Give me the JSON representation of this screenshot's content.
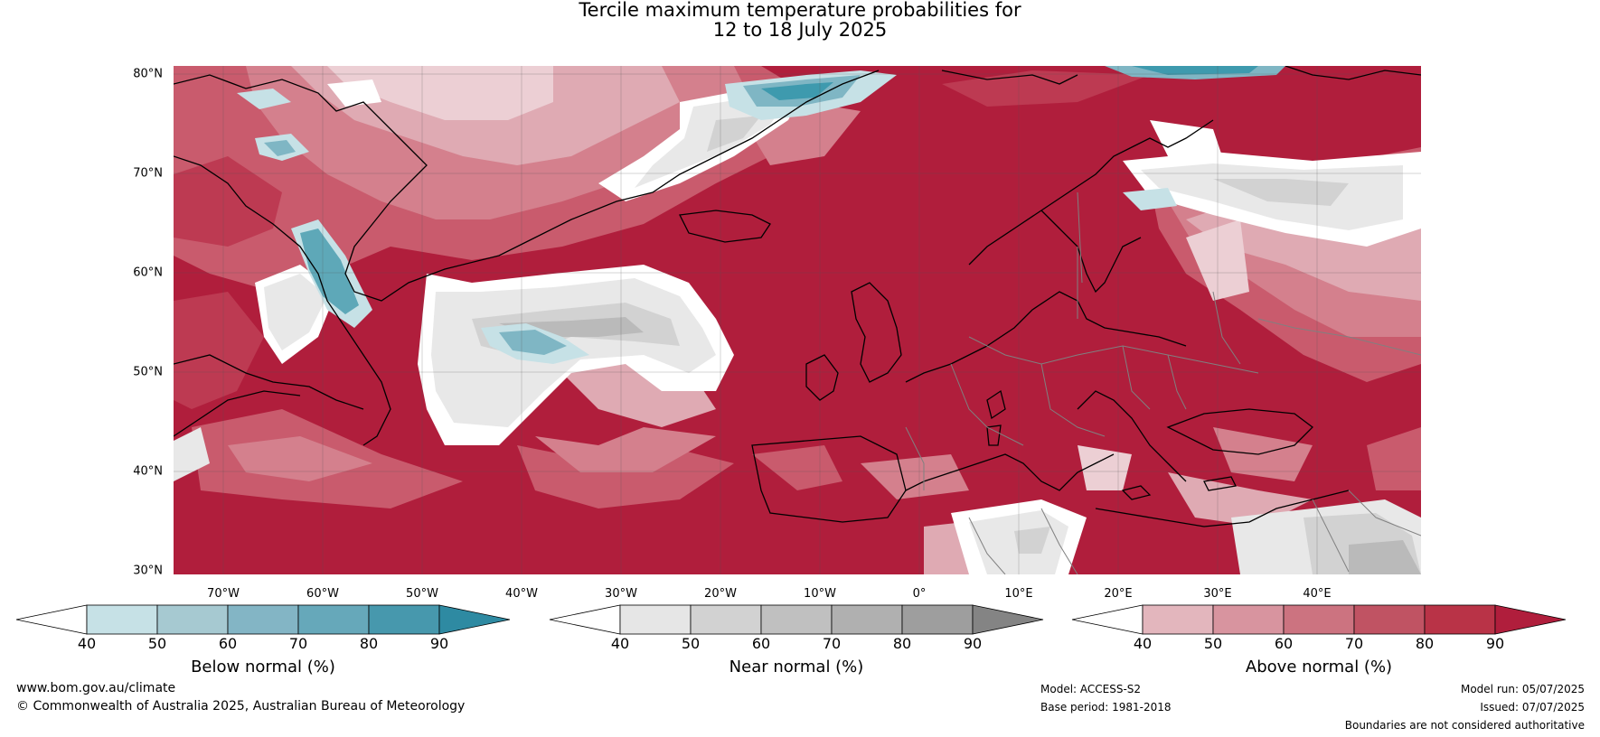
{
  "title": {
    "line1": "Tercile maximum temperature probabilities for",
    "line2": "12 to 18 July 2025"
  },
  "map": {
    "lat_labels": [
      "80°N",
      "70°N",
      "60°N",
      "50°N",
      "40°N",
      "30°N"
    ],
    "lon_labels": [
      "70°W",
      "60°W",
      "50°W",
      "40°W",
      "30°W",
      "20°W",
      "10°W",
      "0°",
      "10°E",
      "20°E",
      "30°E",
      "40°E"
    ],
    "colors": {
      "background_above_90": "#b01e3c",
      "above_80_90": "#bd3a52",
      "above_70_80": "#c95b6d",
      "above_60_70": "#d4808d",
      "above_50_60": "#dfaab3",
      "above_40_50": "#eccfd4",
      "near_40_50": "#e8e8e8",
      "near_50_60": "#d2d2d2",
      "near_60_70": "#bababa",
      "near_70_80": "#a3a3a3",
      "below_40_50": "#c6e1e6",
      "below_50_60": "#a3cad3",
      "below_60_70": "#7fb6c4",
      "below_70_80": "#5ea8b8",
      "below_80_90": "#3e9aae",
      "coast": "#000000",
      "border": "#808080"
    }
  },
  "colorbars": [
    {
      "title": "Below normal (%)",
      "ticks": [
        "40",
        "50",
        "60",
        "70",
        "80",
        "90"
      ],
      "colors": [
        "#c6e1e6",
        "#a6c9d1",
        "#83b5c5",
        "#66a8ba",
        "#4798ad"
      ],
      "low_color": "#ffffff",
      "high_color": "#2e8aa2"
    },
    {
      "title": "Near normal (%)",
      "ticks": [
        "40",
        "50",
        "60",
        "70",
        "80",
        "90"
      ],
      "colors": [
        "#e6e6e6",
        "#d2d2d2",
        "#c0c0c0",
        "#b0b0b0",
        "#9e9e9e"
      ],
      "low_color": "#ffffff",
      "high_color": "#848484"
    },
    {
      "title": "Above normal (%)",
      "ticks": [
        "40",
        "50",
        "60",
        "70",
        "80",
        "90"
      ],
      "colors": [
        "#e3b6bd",
        "#d8949f",
        "#cc7380",
        "#c05363",
        "#b93347"
      ],
      "low_color": "#ffffff",
      "high_color": "#b01e3c"
    }
  ],
  "footer": {
    "website": "www.bom.gov.au/climate",
    "copyright": "© Commonwealth of Australia 2025, Australian Bureau of Meteorology",
    "model": "Model: ACCESS-S2",
    "base_period": "Base period: 1981-2018",
    "model_run": "Model run: 05/07/2025",
    "issued": "Issued: 07/07/2025",
    "disclaimer": "Boundaries are not considered authoritative"
  }
}
